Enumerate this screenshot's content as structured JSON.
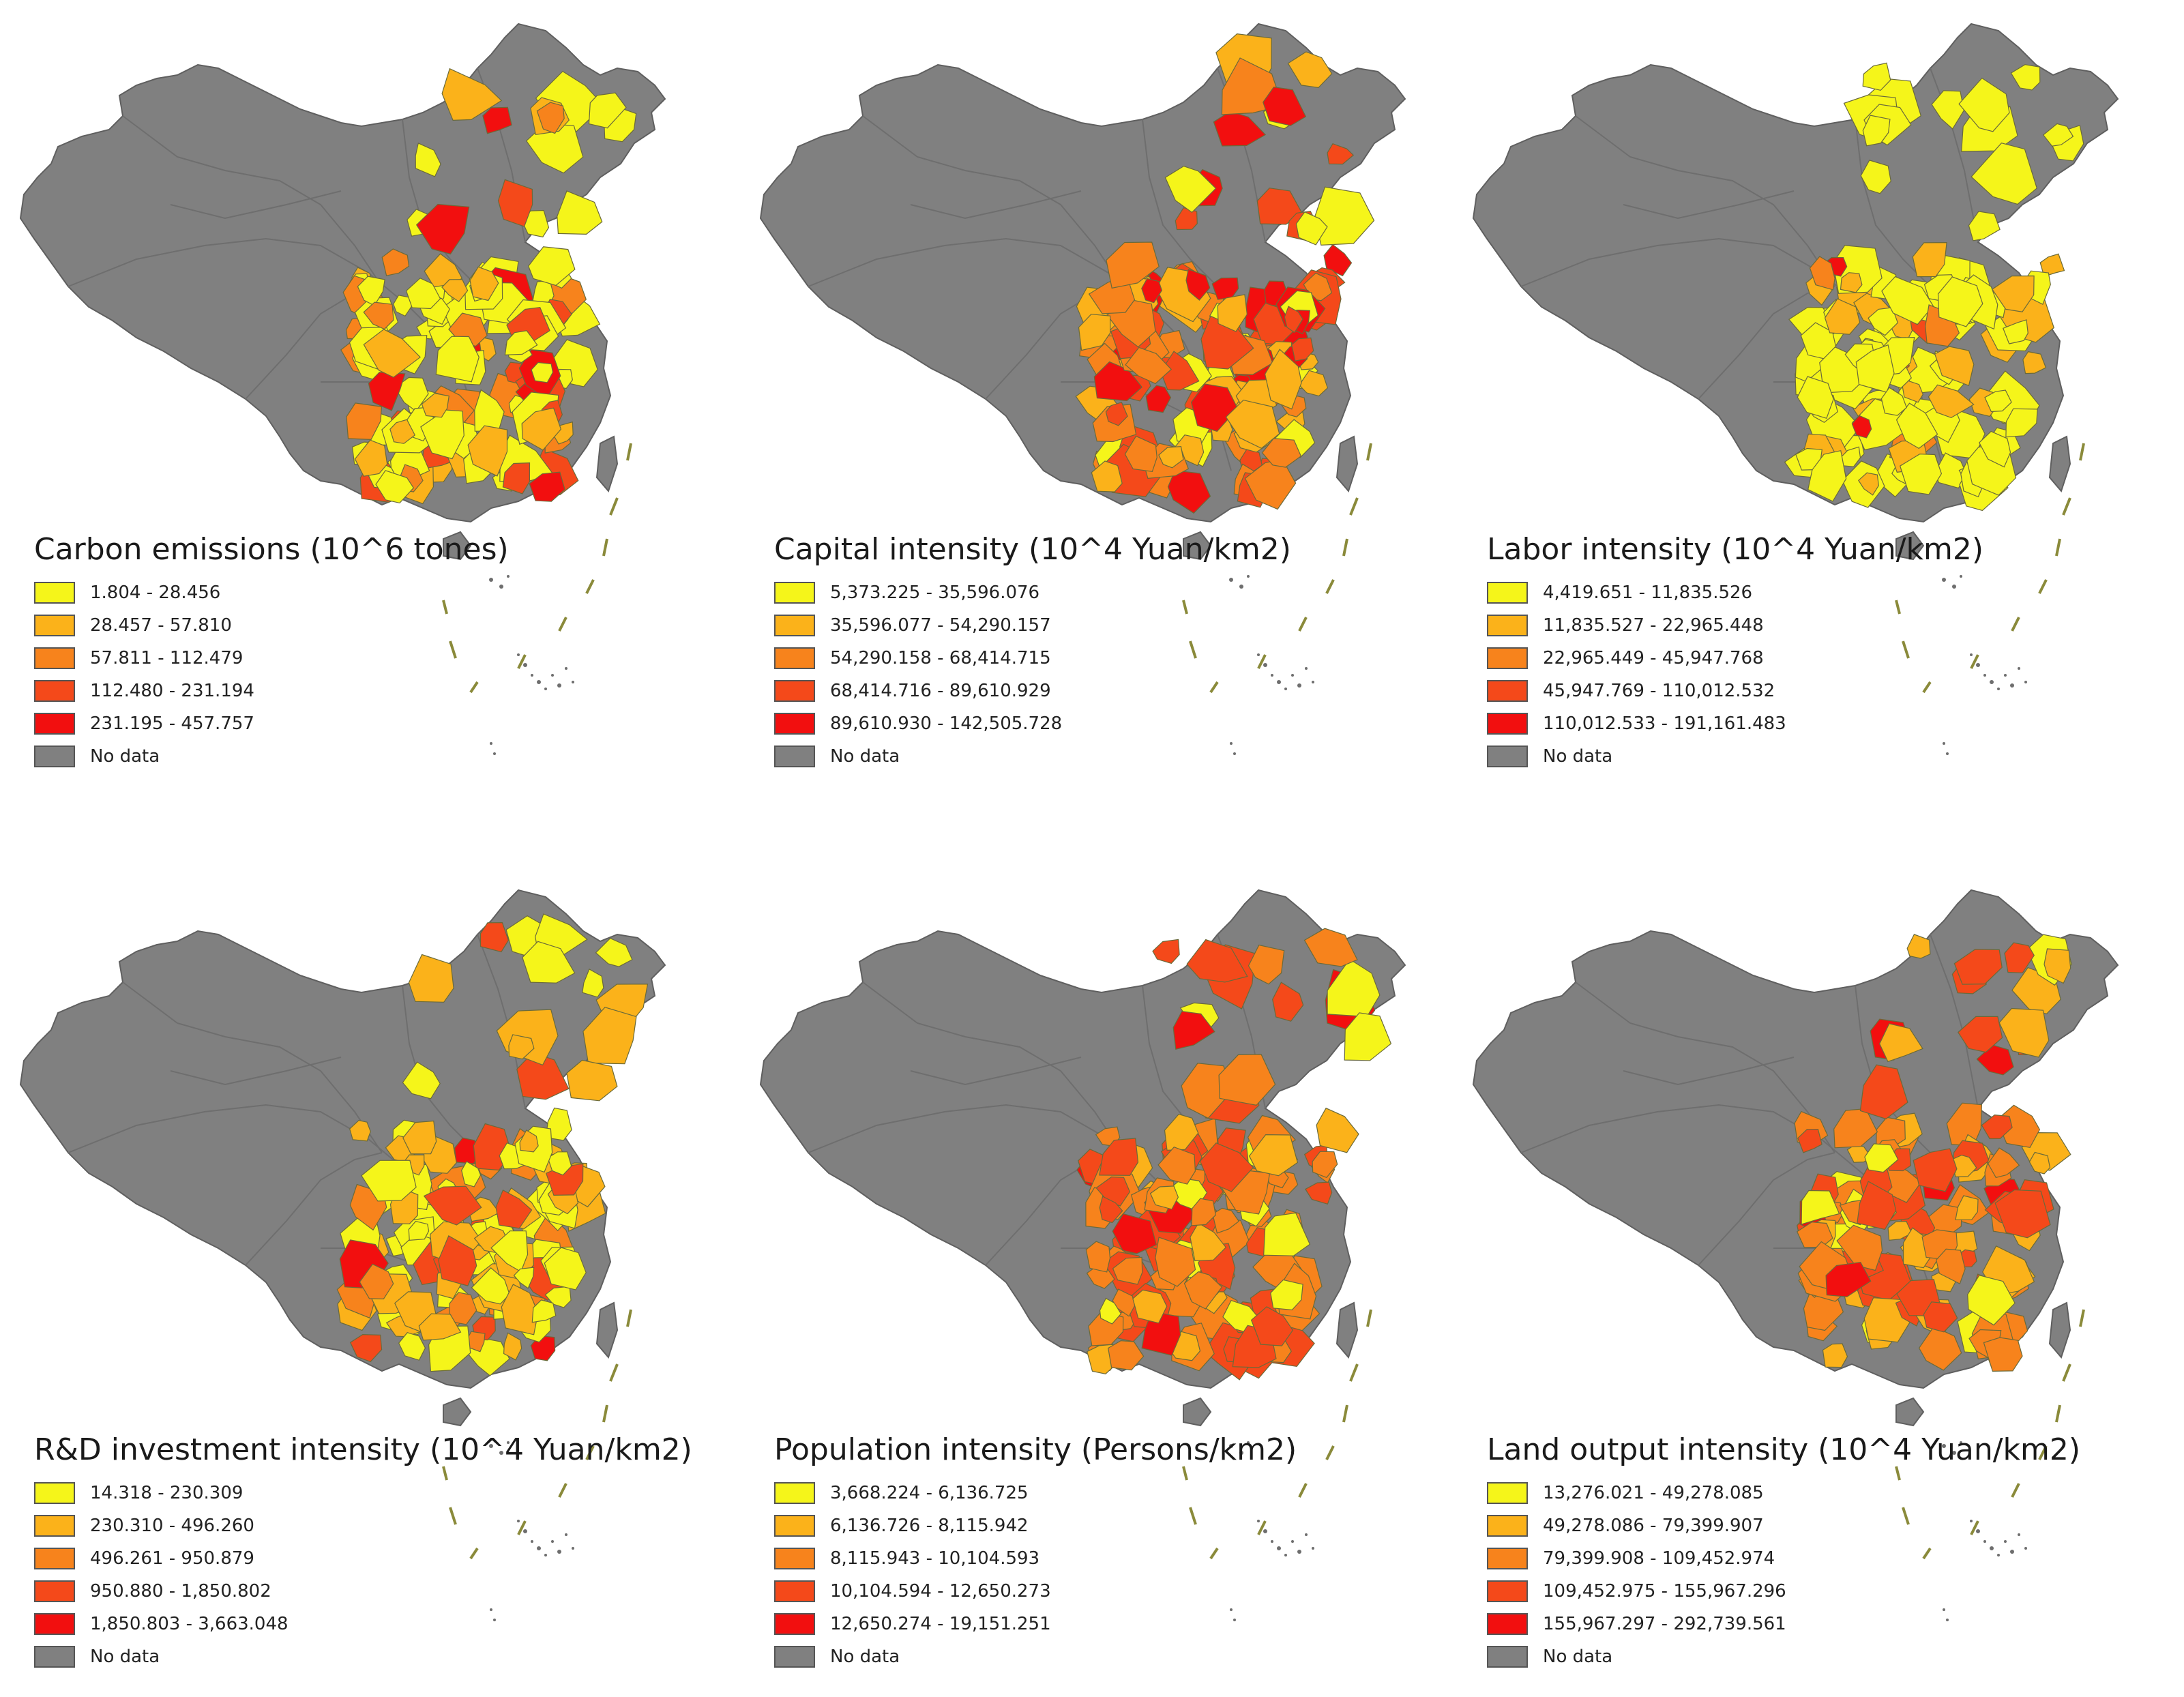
{
  "colors": {
    "class1": "#f5f51a",
    "class2": "#fbb21a",
    "class3": "#f7831c",
    "class4": "#f4491a",
    "class5": "#f20f0f",
    "no_data": "#808080",
    "border": "#5f5f5f",
    "nine_dash": "#8a8a3a"
  },
  "maps": [
    {
      "title": "Carbon emissions (10^6 tones)",
      "legend": [
        "1.804 - 28.456",
        "28.457 - 57.810",
        "57.811 - 112.479",
        "112.480 - 231.194",
        "231.195 - 457.757"
      ],
      "no_data_label": "No data"
    },
    {
      "title": "Capital intensity (10^4 Yuan/km2)",
      "legend": [
        "5,373.225 - 35,596.076",
        "35,596.077 - 54,290.157",
        "54,290.158 - 68,414.715",
        "68,414.716 - 89,610.929",
        "89,610.930 - 142,505.728"
      ],
      "no_data_label": "No data"
    },
    {
      "title": "Labor intensity (10^4 Yuan/km2)",
      "legend": [
        "4,419.651 - 11,835.526",
        "11,835.527 - 22,965.448",
        "22,965.449 - 45,947.768",
        "45,947.769 - 110,012.532",
        "110,012.533 - 191,161.483"
      ],
      "no_data_label": "No data"
    },
    {
      "title": "R&D investment intensity (10^4 Yuan/km2)",
      "legend": [
        "14.318 - 230.309",
        "230.310 - 496.260",
        "496.261 - 950.879",
        "950.880 - 1,850.802",
        "1,850.803 - 3,663.048"
      ],
      "no_data_label": "No data"
    },
    {
      "title": "Population intensity (Persons/km2)",
      "legend": [
        "3,668.224 - 6,136.725",
        "6,136.726 - 8,115.942",
        "8,115.943 - 10,104.593",
        "10,104.594 - 12,650.273",
        "12,650.274 - 19,151.251"
      ],
      "no_data_label": "No data"
    },
    {
      "title": "Land output intensity (10^4 Yuan/km2)",
      "legend": [
        "13,276.021 - 49,278.085",
        "49,278.086 - 79,399.907",
        "79,399.908 - 109,452.974",
        "109,452.975 - 155,967.296",
        "155,967.297 - 292,739.561"
      ],
      "no_data_label": "No data"
    }
  ]
}
